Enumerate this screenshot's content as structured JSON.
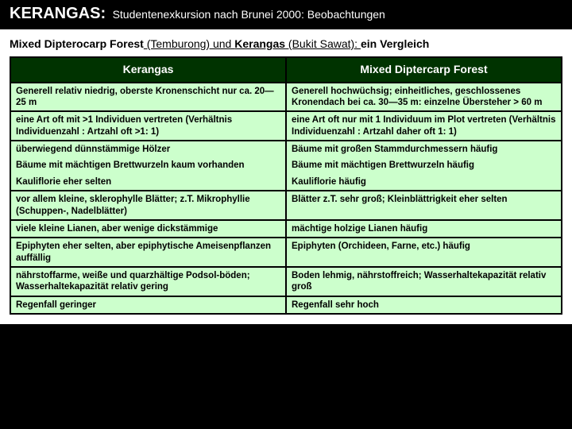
{
  "header": {
    "title": "KERANGAS:",
    "subtitle": "Studentenexkursion nach Brunei 2000: Beobachtungen"
  },
  "subheading": {
    "part1_bold": "Mixed Dipterocarp Forest",
    "part2": " (Temburong) und ",
    "part3_bold": "Kerangas",
    "part4": " (Bukit Sawat): ",
    "part5_bold": "ein Vergleich"
  },
  "table": {
    "type": "table",
    "background_color": "#ccffcc",
    "header_bg": "#003300",
    "header_fg": "#ffffff",
    "border_color": "#000000",
    "columns": [
      "Kerangas",
      "Mixed Diptercarp Forest"
    ],
    "rows": [
      [
        "Generell relativ niedrig, oberste Kronenschicht nur ca. 20—25 m",
        "Generell hochwüchsig; einheitliches, geschlossenes Kronendach bei ca. 30—35 m: einzelne Übersteher > 60 m"
      ],
      [
        "eine Art oft mit >1 Individuen vertreten (Verhältnis Individuenzahl : Artzahl oft >1: 1)",
        "eine Art oft nur mit 1 Individuum im Plot vertreten (Verhältnis Individuenzahl : Artzahl daher oft 1: 1)"
      ],
      [
        "überwiegend dünnstämmige Hölzer",
        "Bäume mit großen Stammdurchmessern häufig"
      ],
      [
        "Bäume mit mächtigen Brettwurzeln kaum vorhanden",
        "Bäume mit mächtigen Brettwurzeln häufig"
      ],
      [
        "Kauliflorie eher selten",
        "Kauliflorie häufig"
      ],
      [
        "vor allem kleine, sklerophylle Blätter; z.T. Mikrophyllie (Schuppen-, Nadelblätter)",
        "Blätter z.T. sehr groß; Kleinblättrigkeit eher selten"
      ],
      [
        "viele kleine Lianen, aber wenige dickstämmige",
        "mächtige holzige Lianen häufig"
      ],
      [
        "Epiphyten eher selten, aber epiphytische Ameisenpflanzen auffällig",
        "Epiphyten (Orchideen, Farne, etc.) häufig"
      ],
      [
        "nährstoffarme, weiße und quarzhältige Podsol-böden; Wasserhaltekapazität relativ gering",
        "Boden lehmig, nährstoffreich; Wasserhaltekapazität relativ groß"
      ],
      [
        "Regenfall geringer",
        "Regenfall sehr hoch"
      ]
    ]
  }
}
